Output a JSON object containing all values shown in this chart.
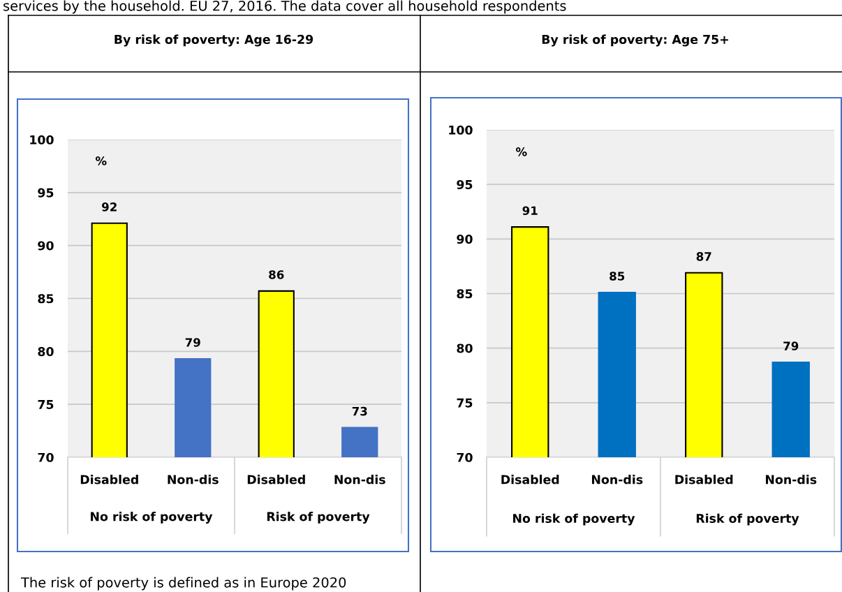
{
  "chart_data": [
    {
      "type": "bar",
      "title": "By risk of poverty: Age 16-29",
      "ylabel": "%",
      "categories": [
        "Disabled",
        "Non-dis",
        "Disabled",
        "Non-dis"
      ],
      "values": [
        92.1,
        79.3,
        85.7,
        72.8
      ],
      "value_labels": [
        "92",
        "79",
        "86",
        "73"
      ],
      "colors": [
        "#ffff00",
        "#4472c4",
        "#ffff00",
        "#4472c4"
      ],
      "ylim": [
        70,
        100
      ],
      "yticks": [
        70,
        75,
        80,
        85,
        90,
        95,
        100
      ],
      "grid": "y",
      "annotations": [
        "No risk of poverty",
        "Risk of poverty",
        "services by the household. EU 27, 2016. The data cover all household respondents",
        "The risk of poverty is defined as in Europe 2020"
      ]
    },
    {
      "type": "bar",
      "title": "By risk of poverty: Age 75+",
      "ylabel": "%",
      "categories": [
        "Disabled",
        "Non-dis",
        "Disabled",
        "Non-dis"
      ],
      "values": [
        91.1,
        85.1,
        86.9,
        78.7
      ],
      "value_labels": [
        "91",
        "85",
        "87",
        "79"
      ],
      "colors": [
        "#ffff00",
        "#0070c0",
        "#ffff00",
        "#0070c0"
      ],
      "ylim": [
        70,
        100
      ],
      "yticks": [
        70,
        75,
        80,
        85,
        90,
        95,
        100
      ],
      "grid": "y",
      "annotations": [
        "No risk of poverty",
        "Risk of poverty"
      ]
    }
  ]
}
